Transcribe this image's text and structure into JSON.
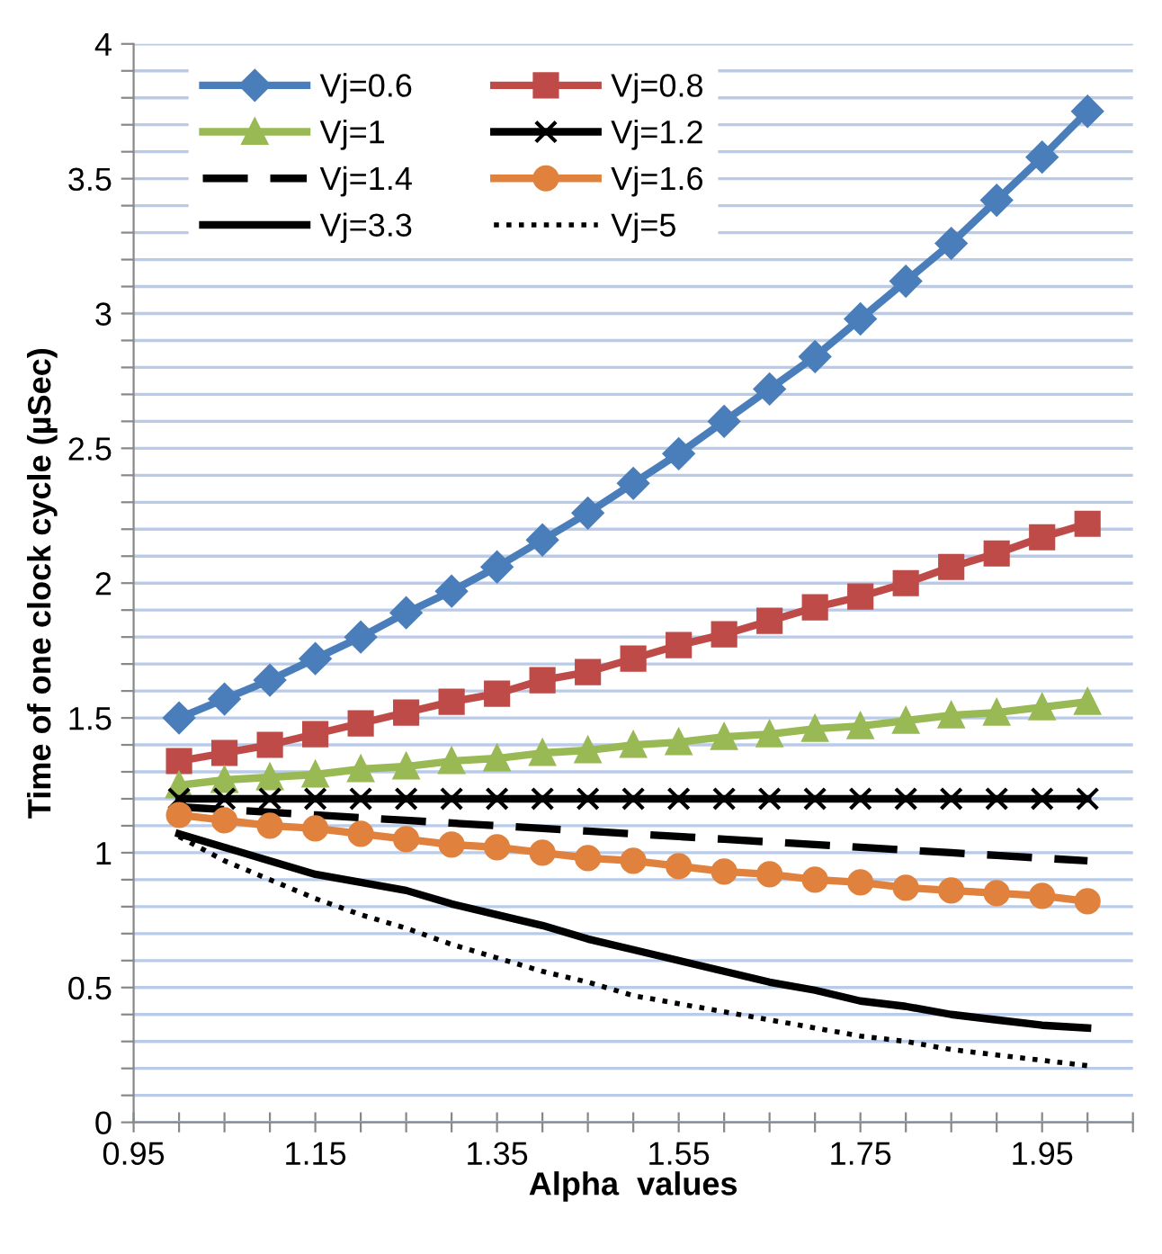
{
  "chart_data": {
    "type": "line",
    "xlabel": "Alpha  values",
    "ylabel": "Time of one clock cycle (µSec)",
    "x": [
      1.0,
      1.05,
      1.1,
      1.15,
      1.2,
      1.25,
      1.3,
      1.35,
      1.4,
      1.45,
      1.5,
      1.55,
      1.6,
      1.65,
      1.7,
      1.75,
      1.8,
      1.85,
      1.9,
      1.95,
      2.0
    ],
    "series": [
      {
        "name": "Vj=0.6",
        "color": "#4a7ebb",
        "marker": "diamond",
        "line_style": "solid",
        "values": [
          1.5,
          1.57,
          1.64,
          1.72,
          1.8,
          1.89,
          1.97,
          2.06,
          2.16,
          2.26,
          2.37,
          2.48,
          2.6,
          2.72,
          2.84,
          2.98,
          3.12,
          3.26,
          3.42,
          3.58,
          3.75
        ]
      },
      {
        "name": "Vj=0.8",
        "color": "#be4b48",
        "marker": "square",
        "line_style": "solid",
        "values": [
          1.34,
          1.37,
          1.4,
          1.44,
          1.48,
          1.52,
          1.56,
          1.59,
          1.64,
          1.67,
          1.72,
          1.77,
          1.81,
          1.86,
          1.91,
          1.95,
          2.0,
          2.06,
          2.11,
          2.17,
          2.22
        ]
      },
      {
        "name": "Vj=1",
        "color": "#98b954",
        "marker": "triangle",
        "line_style": "solid",
        "values": [
          1.25,
          1.27,
          1.28,
          1.29,
          1.31,
          1.32,
          1.34,
          1.35,
          1.37,
          1.38,
          1.4,
          1.41,
          1.43,
          1.44,
          1.46,
          1.47,
          1.49,
          1.51,
          1.52,
          1.54,
          1.56
        ]
      },
      {
        "name": "Vj=1.2",
        "color": "#000000",
        "marker": "cross",
        "line_style": "solid",
        "values": [
          1.2,
          1.2,
          1.2,
          1.2,
          1.2,
          1.2,
          1.2,
          1.2,
          1.2,
          1.2,
          1.2,
          1.2,
          1.2,
          1.2,
          1.2,
          1.2,
          1.2,
          1.2,
          1.2,
          1.2,
          1.2
        ]
      },
      {
        "name": "Vj=1.4",
        "color": "#000000",
        "marker": "none",
        "line_style": "dashed",
        "values": [
          1.17,
          1.16,
          1.15,
          1.14,
          1.13,
          1.12,
          1.11,
          1.1,
          1.09,
          1.08,
          1.07,
          1.06,
          1.05,
          1.04,
          1.03,
          1.02,
          1.01,
          1.0,
          0.99,
          0.98,
          0.97
        ]
      },
      {
        "name": "Vj=1.6",
        "color": "#e0823d",
        "marker": "circle",
        "line_style": "solid",
        "values": [
          1.14,
          1.12,
          1.1,
          1.09,
          1.07,
          1.05,
          1.03,
          1.02,
          1.0,
          0.98,
          0.97,
          0.95,
          0.93,
          0.92,
          0.9,
          0.89,
          0.87,
          0.86,
          0.85,
          0.84,
          0.82
        ]
      },
      {
        "name": "Vj=3.3",
        "color": "#000000",
        "marker": "none",
        "line_style": "solid",
        "values": [
          1.07,
          1.02,
          0.97,
          0.92,
          0.89,
          0.86,
          0.81,
          0.77,
          0.73,
          0.68,
          0.64,
          0.6,
          0.56,
          0.52,
          0.49,
          0.45,
          0.43,
          0.4,
          0.38,
          0.36,
          0.35
        ]
      },
      {
        "name": "Vj=5",
        "color": "#000000",
        "marker": "none",
        "line_style": "dotted",
        "values": [
          1.06,
          0.97,
          0.9,
          0.83,
          0.77,
          0.72,
          0.66,
          0.61,
          0.56,
          0.52,
          0.47,
          0.44,
          0.41,
          0.38,
          0.35,
          0.32,
          0.3,
          0.27,
          0.25,
          0.23,
          0.21
        ]
      }
    ],
    "xlim": [
      0.95,
      2.05
    ],
    "xticks": [
      0.95,
      {
        "value": 1.0,
        "label": null
      },
      {
        "value": 1.05,
        "label": null
      },
      {
        "value": 1.1,
        "label": null
      },
      1.15,
      {
        "value": 1.2,
        "label": null
      },
      {
        "value": 1.25,
        "label": null
      },
      {
        "value": 1.3,
        "label": null
      },
      1.35,
      {
        "value": 1.4,
        "label": null
      },
      {
        "value": 1.45,
        "label": null
      },
      {
        "value": 1.5,
        "label": null
      },
      1.55,
      {
        "value": 1.6,
        "label": null
      },
      {
        "value": 1.65,
        "label": null
      },
      {
        "value": 1.7,
        "label": null
      },
      1.75,
      {
        "value": 1.8,
        "label": null
      },
      {
        "value": 1.85,
        "label": null
      },
      {
        "value": 1.9,
        "label": null
      },
      1.95,
      {
        "value": 2.0,
        "label": null
      },
      {
        "value": 2.05,
        "label": null
      }
    ],
    "ylim": [
      0,
      4
    ],
    "yticks": [
      0,
      {
        "value": 0.1,
        "label": null
      },
      {
        "value": 0.2,
        "label": null
      },
      {
        "value": 0.3,
        "label": null
      },
      {
        "value": 0.4,
        "label": null
      },
      0.5,
      {
        "value": 0.6,
        "label": null
      },
      {
        "value": 0.7,
        "label": null
      },
      {
        "value": 0.8,
        "label": null
      },
      {
        "value": 0.9,
        "label": null
      },
      1,
      {
        "value": 1.1,
        "label": null
      },
      {
        "value": 1.2,
        "label": null
      },
      {
        "value": 1.3,
        "label": null
      },
      {
        "value": 1.4,
        "label": null
      },
      1.5,
      {
        "value": 1.6,
        "label": null
      },
      {
        "value": 1.7,
        "label": null
      },
      {
        "value": 1.8,
        "label": null
      },
      {
        "value": 1.9,
        "label": null
      },
      2,
      {
        "value": 2.1,
        "label": null
      },
      {
        "value": 2.2,
        "label": null
      },
      {
        "value": 2.3,
        "label": null
      },
      {
        "value": 2.4,
        "label": null
      },
      2.5,
      {
        "value": 2.6,
        "label": null
      },
      {
        "value": 2.7,
        "label": null
      },
      {
        "value": 2.8,
        "label": null
      },
      {
        "value": 2.9,
        "label": null
      },
      3,
      {
        "value": 3.1,
        "label": null
      },
      {
        "value": 3.2,
        "label": null
      },
      {
        "value": 3.3,
        "label": null
      },
      {
        "value": 3.4,
        "label": null
      },
      3.5,
      {
        "value": 3.6,
        "label": null
      },
      {
        "value": 3.7,
        "label": null
      },
      {
        "value": 3.8,
        "label": null
      },
      {
        "value": 3.9,
        "label": null
      },
      4
    ],
    "grid": "y",
    "legend": "top left"
  }
}
